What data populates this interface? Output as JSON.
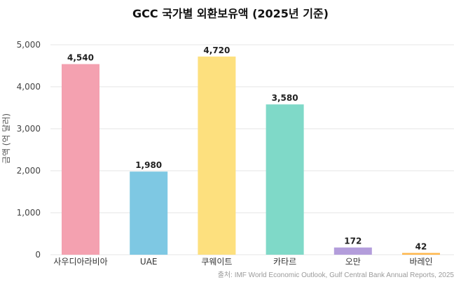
{
  "chart_data": {
    "type": "bar",
    "title": "GCC 국가별 외환보유액 (2025년 기준)",
    "xlabel": "",
    "ylabel": "금액 (억 달러)",
    "ylim": [
      0,
      5000
    ],
    "yticks": [
      0,
      1000,
      2000,
      3000,
      4000,
      5000
    ],
    "ytick_labels": [
      "0",
      "1,000",
      "2,000",
      "3,000",
      "4,000",
      "5,000"
    ],
    "categories": [
      "사우디아라비아",
      "UAE",
      "쿠웨이트",
      "카타르",
      "오만",
      "바레인"
    ],
    "values": [
      4540,
      1980,
      4720,
      3580,
      172,
      42
    ],
    "value_labels": [
      "4,540",
      "1,980",
      "4,720",
      "3,580",
      "172",
      "42"
    ],
    "colors": [
      "#f4a1b0",
      "#7ec8e3",
      "#fde07e",
      "#7fd9c8",
      "#b39ddb",
      "#ffb74d"
    ],
    "grid": true,
    "source": "출처: IMF World Economic Outlook, Gulf Central Bank Annual Reports, 2025"
  }
}
